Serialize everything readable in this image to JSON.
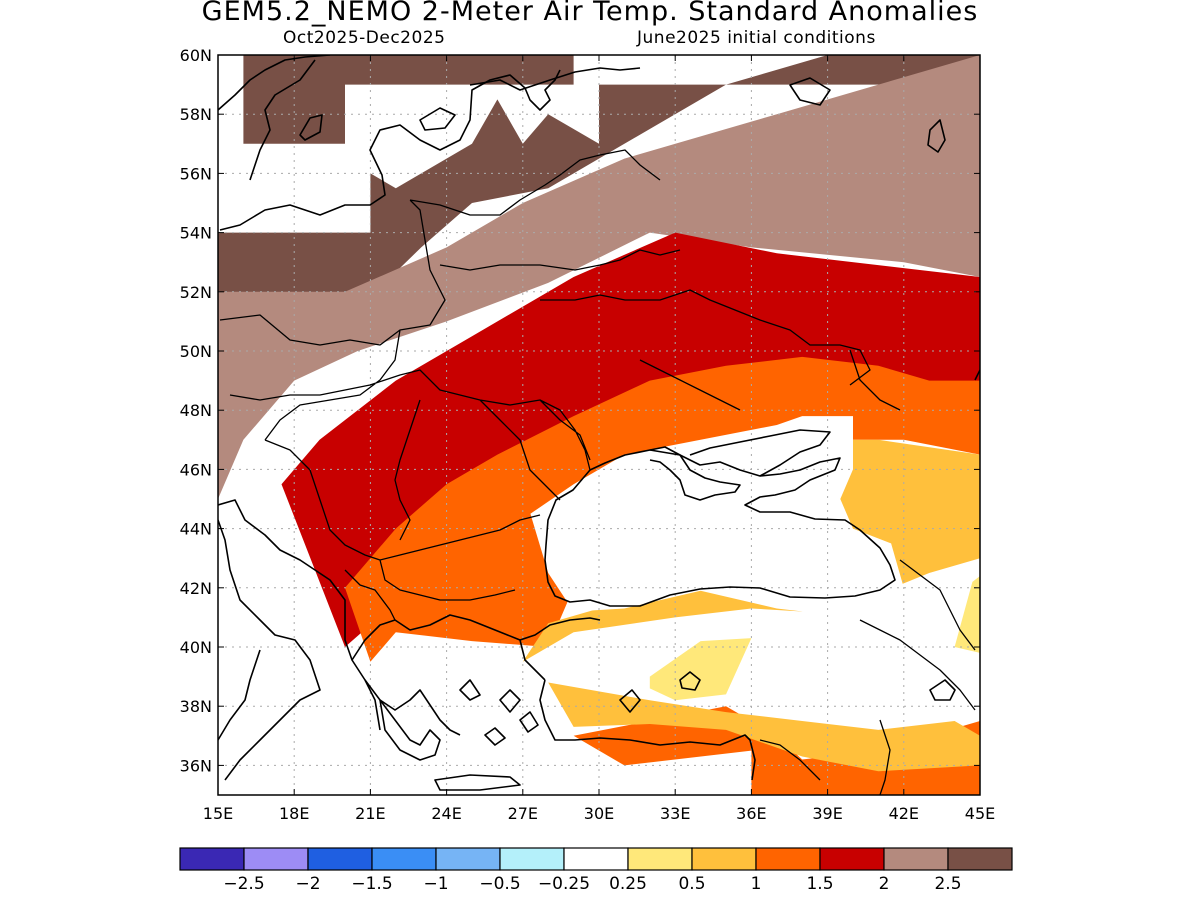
{
  "title": "GEM5.2_NEMO 2-Meter Air Temp. Standard Anomalies",
  "period": "Oct2025-Dec2025",
  "init": "June2025 initial conditions",
  "map": {
    "lon_range": [
      15,
      45
    ],
    "lat_range": [
      35,
      60
    ],
    "lon_ticks": [
      "15E",
      "18E",
      "21E",
      "24E",
      "27E",
      "30E",
      "33E",
      "36E",
      "39E",
      "42E",
      "45E"
    ],
    "lat_ticks": [
      "36N",
      "38N",
      "40N",
      "42N",
      "44N",
      "46N",
      "48N",
      "50N",
      "52N",
      "54N",
      "56N",
      "58N",
      "60N"
    ],
    "gridlines": "dotted"
  },
  "colorbar": {
    "colors": [
      "#3a28b4",
      "#9d8cf5",
      "#1f5fe1",
      "#3a8ef5",
      "#76b4f5",
      "#b4f0fa",
      "#ffffff",
      "#ffe87a",
      "#ffc03c",
      "#ff6400",
      "#c80000",
      "#b48a7e",
      "#785046"
    ],
    "labels": [
      "-2.5",
      "-2",
      "-1.5",
      "-1",
      "-0.5",
      "-0.25",
      "0.25",
      "0.5",
      "1",
      "1.5",
      "2",
      "2.5"
    ]
  },
  "anomaly_regions": [
    {
      "category": "> 2.5",
      "color": "#785046",
      "lon_lat": [
        [
          16,
          60
        ],
        [
          29,
          60
        ],
        [
          29,
          59
        ],
        [
          45,
          59
        ],
        [
          45,
          60
        ],
        [
          39,
          60
        ],
        [
          35,
          59
        ],
        [
          31,
          57
        ],
        [
          28,
          55.5
        ],
        [
          25,
          55
        ],
        [
          23,
          53.5
        ],
        [
          20,
          51
        ],
        [
          17,
          50
        ],
        [
          15,
          48.5
        ],
        [
          15,
          54
        ],
        [
          21,
          54
        ],
        [
          21,
          56
        ],
        [
          22,
          55.5
        ],
        [
          25,
          57
        ],
        [
          26,
          58.5
        ],
        [
          27,
          57
        ],
        [
          28,
          58
        ],
        [
          30,
          57
        ],
        [
          30,
          59
        ],
        [
          20,
          59
        ],
        [
          20,
          57
        ],
        [
          16,
          57
        ]
      ]
    },
    {
      "category": "2 to 2.5",
      "color": "#b48a7e",
      "lon_lat": [
        [
          15,
          52
        ],
        [
          20,
          52
        ],
        [
          24,
          53.5
        ],
        [
          27,
          55
        ],
        [
          31,
          56.5
        ],
        [
          37,
          58
        ],
        [
          45,
          60
        ],
        [
          45,
          52.5
        ],
        [
          42,
          53
        ],
        [
          36,
          53.5
        ],
        [
          32,
          54
        ],
        [
          28,
          52.3
        ],
        [
          24,
          51
        ],
        [
          20.5,
          50
        ],
        [
          18,
          49
        ],
        [
          16,
          47
        ],
        [
          15,
          45
        ]
      ]
    },
    {
      "category": "1.5 to 2",
      "color": "#c80000",
      "lon_lat": [
        [
          17.5,
          45.5
        ],
        [
          19,
          47
        ],
        [
          22,
          49
        ],
        [
          25,
          50.5
        ],
        [
          29,
          52.5
        ],
        [
          33,
          54
        ],
        [
          37,
          53.3
        ],
        [
          42,
          52.8
        ],
        [
          45,
          52.5
        ],
        [
          45,
          49
        ],
        [
          43,
          48.5
        ],
        [
          40,
          49.5
        ],
        [
          36,
          49.3
        ],
        [
          32,
          48.5
        ],
        [
          29,
          47.5
        ],
        [
          26,
          46
        ],
        [
          24,
          44
        ],
        [
          22,
          41.5
        ],
        [
          20,
          40
        ]
      ]
    },
    {
      "category": "1 to 1.5",
      "color": "#ff6400",
      "lon_lat": [
        [
          20,
          42
        ],
        [
          22,
          44
        ],
        [
          24,
          45.5
        ],
        [
          26,
          46.5
        ],
        [
          29,
          47.8
        ],
        [
          32,
          49
        ],
        [
          35,
          49.5
        ],
        [
          38,
          49.8
        ],
        [
          41,
          49.5
        ],
        [
          43,
          49
        ],
        [
          45,
          49
        ],
        [
          45,
          46.5
        ],
        [
          42,
          47
        ],
        [
          39,
          47
        ],
        [
          36,
          46.8
        ],
        [
          33,
          46.5
        ],
        [
          31,
          45.3
        ],
        [
          30,
          44
        ],
        [
          29,
          42
        ],
        [
          28,
          40
        ],
        [
          25,
          40.2
        ],
        [
          22,
          40.5
        ],
        [
          21,
          39.5
        ]
      ]
    },
    {
      "category": "1 to 1.5",
      "color": "#ff6400",
      "lon_lat": [
        [
          29,
          37
        ],
        [
          32,
          37.5
        ],
        [
          35,
          38
        ],
        [
          37,
          37
        ],
        [
          38,
          36.2
        ],
        [
          41,
          36.5
        ],
        [
          43,
          37
        ],
        [
          45,
          37.5
        ],
        [
          45,
          35
        ],
        [
          36,
          35
        ],
        [
          36,
          36.5
        ],
        [
          31,
          36
        ],
        [
          29,
          37
        ]
      ]
    },
    {
      "category": "0.5 to 1",
      "color": "#ffc03c",
      "lon_lat": [
        [
          27,
          39.5
        ],
        [
          29,
          40.5
        ],
        [
          33,
          41
        ],
        [
          36,
          41.3
        ],
        [
          38,
          41.2
        ],
        [
          41,
          41.8
        ],
        [
          43,
          42.5
        ],
        [
          45,
          43
        ],
        [
          45,
          46.5
        ],
        [
          41,
          47
        ],
        [
          37,
          47
        ],
        [
          33,
          46.5
        ],
        [
          31.5,
          45
        ],
        [
          31,
          43
        ],
        [
          30,
          41.3
        ],
        [
          28,
          40.8
        ]
      ]
    },
    {
      "category": "0.5 to 1",
      "color": "#ffc03c",
      "lon_lat": [
        [
          28,
          38.8
        ],
        [
          32,
          38.2
        ],
        [
          35,
          37.8
        ],
        [
          38,
          37.5
        ],
        [
          41,
          37.2
        ],
        [
          44,
          37.5
        ],
        [
          45,
          37
        ],
        [
          45,
          36
        ],
        [
          41,
          35.8
        ],
        [
          38,
          36.3
        ],
        [
          35,
          37.2
        ],
        [
          32,
          37.4
        ],
        [
          29,
          37.3
        ]
      ]
    },
    {
      "category": "0.25 to 0.5",
      "color": "#ffe87a",
      "lon_lat": [
        [
          32,
          39
        ],
        [
          34,
          40.2
        ],
        [
          36,
          40.3
        ],
        [
          35,
          38.4
        ],
        [
          33,
          38.2
        ],
        [
          32,
          38.6
        ]
      ]
    },
    {
      "category": "0.25 to 0.5",
      "color": "#ffe87a",
      "lon_lat": [
        [
          44,
          40
        ],
        [
          44.7,
          42.2
        ],
        [
          45,
          42.4
        ],
        [
          45,
          39.8
        ]
      ]
    },
    {
      "category": "-0.25 to 0.25",
      "color": "#ffffff",
      "lon_lat": [
        [
          27.3,
          44.5
        ],
        [
          29,
          45.5
        ],
        [
          31,
          46.5
        ],
        [
          34,
          47
        ],
        [
          37,
          47.5
        ],
        [
          38,
          47.8
        ],
        [
          40,
          47.8
        ],
        [
          40,
          46
        ],
        [
          39.5,
          45
        ],
        [
          40,
          44
        ],
        [
          41.5,
          43.5
        ],
        [
          42,
          42
        ],
        [
          40,
          41
        ],
        [
          37,
          41.3
        ],
        [
          34,
          41.9
        ],
        [
          31,
          41.3
        ],
        [
          29,
          41.2
        ],
        [
          28,
          42.5
        ]
      ]
    }
  ]
}
